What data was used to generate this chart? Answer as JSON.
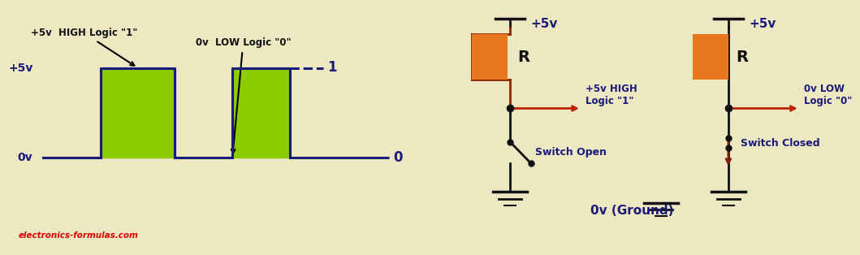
{
  "bg_color": "#ede8c2",
  "left_panel": {
    "waveform_color": "#1a1a7a",
    "fill_color": "#8dcc00",
    "label_color": "#1a1a7a",
    "annotation_color": "#111111",
    "watermark_color": "#DD0000",
    "watermark": "electronics-formulas.com",
    "high_label": "+5v  HIGH Logic \"1\"",
    "low_label": "0v  LOW Logic \"0\"",
    "plus5v_label": "+5v",
    "ov_label": "0v",
    "one_label": "1",
    "zero_label": "0"
  },
  "right_panel": {
    "wire_color": "#111111",
    "wire_color_c1": "#8B2800",
    "resistor_color": "#E87820",
    "arrow_high_color": "#BB2200",
    "arrow_low_color": "#772200",
    "label_color": "#1a1a7a",
    "circuit1": {
      "title": "+5v",
      "R_label": "R",
      "output_label": "+5v HIGH\nLogic \"1\"",
      "switch_label": "Switch Open",
      "ground_label": "0v (Ground)"
    },
    "circuit2": {
      "title": "+5v",
      "R_label": "R",
      "output_label": "0v LOW\nLogic \"0\"",
      "switch_label": "Switch Closed"
    }
  }
}
